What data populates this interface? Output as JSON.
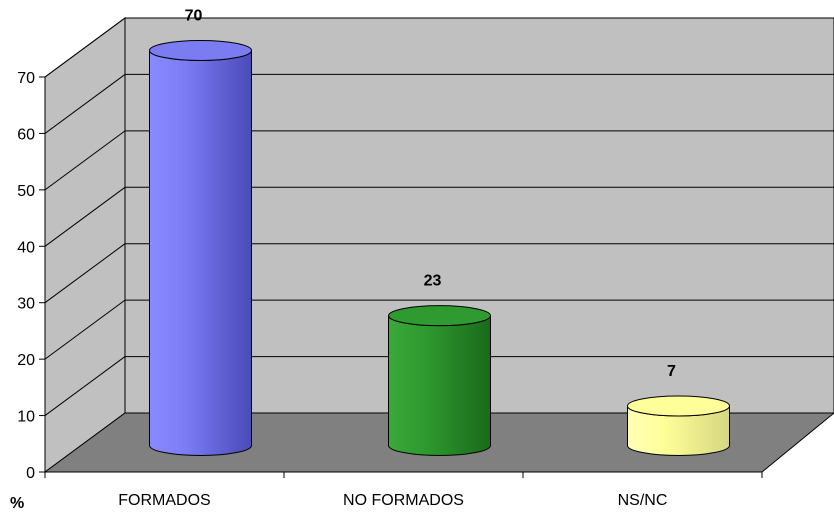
{
  "chart_data": {
    "type": "bar",
    "style": "3d-cylinder",
    "categories": [
      "FORMADOS",
      "NO FORMADOS",
      "NS/NC"
    ],
    "values": [
      70,
      23,
      7
    ],
    "data_labels": [
      "70",
      "23",
      "7"
    ],
    "colors": [
      "#7b7bf2",
      "#2f9a2f",
      "#ffff99"
    ],
    "title": "",
    "xlabel": "",
    "ylabel": "%",
    "ylim": [
      0,
      70
    ],
    "yticks": [
      "0",
      "10",
      "20",
      "30",
      "40",
      "50",
      "60",
      "70"
    ],
    "grid": true,
    "legend": "none"
  }
}
